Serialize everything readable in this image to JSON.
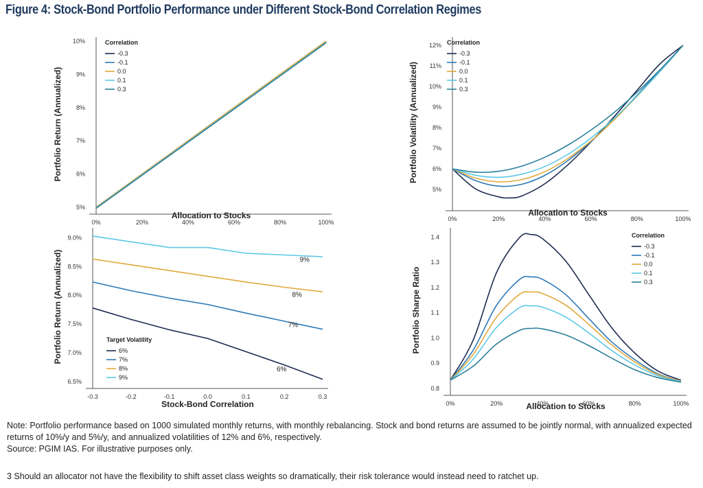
{
  "figure_title": "Figure 4: Stock-Bond Portfolio Performance under Different Stock-Bond Correlation Regimes",
  "colors": {
    "-0.3": "#1d2b4f",
    "-0.1": "#2b78b6",
    "0.0": "#e0a93b",
    "0.1": "#5cc8e6",
    "0.3": "#2a7f9a",
    "6%": "#1d2b4f",
    "7%": "#2b78b6",
    "8%": "#e0a93b",
    "9%": "#5cc8e6"
  },
  "chart_data": [
    {
      "id": "top-left",
      "type": "line",
      "xlabel": "Allocation to Stocks",
      "ylabel": "Portfolio Return (Annualized)",
      "xlim": [
        0,
        100
      ],
      "ylim": [
        5,
        10
      ],
      "xticks": [
        0,
        20,
        40,
        60,
        80,
        100
      ],
      "xtick_labels": [
        "0%",
        "20%",
        "40%",
        "60%",
        "80%",
        "100%"
      ],
      "yticks": [
        5,
        6,
        7,
        8,
        9,
        10
      ],
      "ytick_labels": [
        "5%",
        "6%",
        "7%",
        "8%",
        "9%",
        "10%"
      ],
      "legend": {
        "title": "Correlation",
        "placement": "top-left"
      },
      "series": [
        {
          "name": "-0.3",
          "x": [
            0,
            100
          ],
          "y": [
            5.0,
            10.0
          ]
        },
        {
          "name": "-0.1",
          "x": [
            0,
            100
          ],
          "y": [
            5.0,
            10.0
          ]
        },
        {
          "name": "0.0",
          "x": [
            0,
            100
          ],
          "y": [
            5.0,
            10.0
          ]
        },
        {
          "name": "0.1",
          "x": [
            0,
            100
          ],
          "y": [
            4.98,
            9.96
          ]
        },
        {
          "name": "0.3",
          "x": [
            0,
            100
          ],
          "y": [
            4.97,
            9.95
          ]
        }
      ]
    },
    {
      "id": "top-right",
      "type": "line",
      "xlabel": "Allocation to Stocks",
      "ylabel": "Portfolio Volatility (Annualized)",
      "xlim": [
        0,
        100
      ],
      "ylim": [
        4.3,
        12.2
      ],
      "xticks": [
        0,
        20,
        40,
        60,
        80,
        100
      ],
      "xtick_labels": [
        "0%",
        "20%",
        "40%",
        "60%",
        "80%",
        "100%"
      ],
      "yticks": [
        5,
        6,
        7,
        8,
        9,
        10,
        11,
        12
      ],
      "ytick_labels": [
        "5%",
        "6%",
        "7%",
        "8%",
        "9%",
        "10%",
        "11%",
        "12%"
      ],
      "legend": {
        "title": "Correlation",
        "placement": "top-left"
      },
      "series": [
        {
          "name": "-0.3",
          "x": [
            0,
            10,
            20,
            25,
            30,
            40,
            50,
            60,
            70,
            80,
            90,
            100
          ],
          "y": [
            6.0,
            5.03,
            4.64,
            4.59,
            4.68,
            5.27,
            6.19,
            7.3,
            8.52,
            9.81,
            11.1,
            12.0
          ]
        },
        {
          "name": "-0.1",
          "x": [
            0,
            10,
            20,
            30,
            40,
            50,
            60,
            70,
            80,
            90,
            100
          ],
          "y": [
            6.0,
            5.43,
            5.16,
            5.25,
            5.68,
            6.4,
            7.32,
            8.39,
            9.57,
            10.8,
            12.0
          ]
        },
        {
          "name": "0.0",
          "x": [
            0,
            10,
            20,
            30,
            40,
            50,
            60,
            70,
            80,
            90,
            100
          ],
          "y": [
            6.0,
            5.55,
            5.37,
            5.48,
            5.86,
            6.5,
            7.35,
            8.37,
            9.52,
            10.73,
            12.0
          ]
        },
        {
          "name": "0.1",
          "x": [
            0,
            10,
            20,
            30,
            40,
            50,
            60,
            70,
            80,
            90,
            100
          ],
          "y": [
            6.0,
            5.69,
            5.59,
            5.74,
            6.11,
            6.7,
            7.49,
            8.44,
            9.54,
            10.73,
            12.0
          ]
        },
        {
          "name": "0.3",
          "x": [
            0,
            10,
            20,
            30,
            40,
            50,
            60,
            70,
            80,
            90,
            100
          ],
          "y": [
            6.0,
            5.84,
            5.88,
            6.13,
            6.56,
            7.15,
            7.88,
            8.73,
            9.72,
            10.81,
            12.0
          ]
        }
      ]
    },
    {
      "id": "bottom-left",
      "type": "line",
      "xlabel": "Stock-Bond Correlation",
      "ylabel": "Portfolio Return (Annualized)",
      "xlim": [
        -0.3,
        0.3
      ],
      "ylim": [
        6.5,
        9.1
      ],
      "xticks": [
        -0.3,
        -0.2,
        -0.1,
        0.0,
        0.1,
        0.2,
        0.3
      ],
      "xtick_labels": [
        "-0.3",
        "-0.2",
        "-0.1",
        "0.0",
        "0.1",
        "0.2",
        "0.3"
      ],
      "yticks": [
        6.5,
        7.0,
        7.5,
        8.0,
        8.5,
        9.0
      ],
      "ytick_labels": [
        "6.5%",
        "7.0%",
        "7.5%",
        "8.0%",
        "8.5%",
        "9.0%"
      ],
      "legend": {
        "title": "Target Volatility",
        "placement": "bottom-left"
      },
      "series": [
        {
          "name": "6%",
          "x": [
            -0.3,
            -0.2,
            -0.1,
            0.0,
            0.1,
            0.2,
            0.3
          ],
          "y": [
            7.78,
            7.58,
            7.4,
            7.25,
            7.02,
            6.79,
            6.54
          ],
          "label": "6%",
          "label_x": 0.18,
          "label_y": 6.68
        },
        {
          "name": "7%",
          "x": [
            -0.3,
            -0.2,
            -0.1,
            0.0,
            0.1,
            0.2,
            0.3
          ],
          "y": [
            8.23,
            8.08,
            7.95,
            7.84,
            7.69,
            7.55,
            7.41
          ],
          "label": "7%",
          "label_x": 0.21,
          "label_y": 7.45
        },
        {
          "name": "8%",
          "x": [
            -0.3,
            -0.2,
            -0.1,
            0.0,
            0.1,
            0.2,
            0.3
          ],
          "y": [
            8.63,
            8.53,
            8.43,
            8.33,
            8.23,
            8.14,
            8.06
          ],
          "label": "8%",
          "label_x": 0.22,
          "label_y": 7.97
        },
        {
          "name": "9%",
          "x": [
            -0.3,
            -0.2,
            -0.1,
            0.0,
            0.1,
            0.2,
            0.3
          ],
          "y": [
            9.03,
            8.93,
            8.83,
            8.83,
            8.73,
            8.7,
            8.67
          ],
          "label": "9%",
          "label_x": 0.24,
          "label_y": 8.58
        }
      ]
    },
    {
      "id": "bottom-right",
      "type": "line",
      "xlabel": "Allocation to Stocks",
      "ylabel": "Portfolio Sharpe Ratio",
      "xlim": [
        0,
        100
      ],
      "ylim": [
        0.8,
        1.42
      ],
      "xticks": [
        0,
        20,
        40,
        60,
        80,
        100
      ],
      "xtick_labels": [
        "0%",
        "20%",
        "40%",
        "60%",
        "80%",
        "100%"
      ],
      "yticks": [
        0.8,
        0.9,
        1.0,
        1.1,
        1.2,
        1.3,
        1.4
      ],
      "ytick_labels": [
        "0.8",
        "0.9",
        "1.0",
        "1.1",
        "1.2",
        "1.3",
        "1.4"
      ],
      "legend": {
        "title": "Correlation",
        "placement": "top-right"
      },
      "series": [
        {
          "name": "-0.3",
          "x": [
            0,
            10,
            20,
            30,
            35,
            40,
            50,
            60,
            70,
            80,
            90,
            100
          ],
          "y": [
            0.833,
            0.994,
            1.259,
            1.398,
            1.41,
            1.393,
            1.305,
            1.172,
            1.04,
            0.94,
            0.869,
            0.833
          ]
        },
        {
          "name": "-0.1",
          "x": [
            0,
            10,
            20,
            30,
            35,
            40,
            50,
            60,
            70,
            80,
            90,
            100
          ],
          "y": [
            0.833,
            0.953,
            1.129,
            1.232,
            1.242,
            1.232,
            1.172,
            1.077,
            0.984,
            0.914,
            0.858,
            0.83
          ]
        },
        {
          "name": "0.0",
          "x": [
            0,
            10,
            20,
            30,
            35,
            40,
            50,
            60,
            70,
            80,
            90,
            100
          ],
          "y": [
            0.833,
            0.936,
            1.082,
            1.173,
            1.182,
            1.176,
            1.13,
            1.054,
            0.972,
            0.905,
            0.855,
            0.83
          ]
        },
        {
          "name": "0.1",
          "x": [
            0,
            10,
            20,
            30,
            35,
            40,
            50,
            60,
            70,
            80,
            90,
            100
          ],
          "y": [
            0.833,
            0.917,
            1.042,
            1.12,
            1.127,
            1.122,
            1.083,
            1.02,
            0.95,
            0.893,
            0.85,
            0.828
          ]
        },
        {
          "name": "0.3",
          "x": [
            0,
            10,
            20,
            30,
            35,
            40,
            50,
            60,
            70,
            80,
            90,
            100
          ],
          "y": [
            0.833,
            0.889,
            0.976,
            1.03,
            1.038,
            1.036,
            1.012,
            0.97,
            0.92,
            0.874,
            0.843,
            0.825
          ]
        }
      ]
    }
  ],
  "notes": {
    "line1": "Note: Portfolio performance based on 1000 simulated monthly returns, with monthly rebalancing. Stock and bond returns are assumed to be jointly normal, with annualized expected returns of 10%/y and 5%/y, and annualized volatilities of 12% and 6%, respectively.",
    "line2": "Source: PGIM IAS. For illustrative purposes only."
  },
  "footnote": "3   Should an allocator not have the flexibility to shift asset class weights so dramatically, their risk tolerance would instead need to ratchet up."
}
